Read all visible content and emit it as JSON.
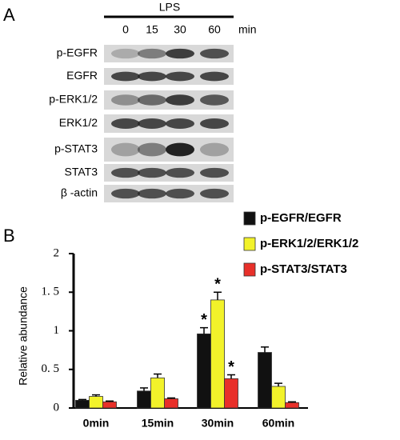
{
  "panel_a": {
    "label": "A",
    "treatment": "LPS",
    "timepoints": [
      "0",
      "15",
      "30",
      "60"
    ],
    "unit": "min",
    "blots": [
      "p-EGFR",
      "EGFR",
      "p-ERK1/2",
      "ERK1/2",
      "p-STAT3",
      "STAT3",
      "β -actin"
    ]
  },
  "chart_data": {
    "type": "bar",
    "panel_label": "B",
    "y_label": "Relative abundance",
    "categories": [
      "0min",
      "15min",
      "30min",
      "60min"
    ],
    "series": [
      {
        "name": "p-EGFR/EGFR",
        "color": "#111111",
        "values": [
          0.1,
          0.22,
          0.96,
          0.72
        ],
        "errors": [
          0.01,
          0.04,
          0.08,
          0.07
        ],
        "significance": [
          null,
          null,
          "*",
          null
        ]
      },
      {
        "name": "p-ERK1/2/ERK1/2",
        "color": "#f2f22a",
        "values": [
          0.15,
          0.39,
          1.4,
          0.28
        ],
        "errors": [
          0.02,
          0.05,
          0.1,
          0.04
        ],
        "significance": [
          null,
          null,
          "*",
          null
        ]
      },
      {
        "name": "p-STAT3/STAT3",
        "color": "#e8302a",
        "values": [
          0.08,
          0.12,
          0.38,
          0.07
        ],
        "errors": [
          0.01,
          0.01,
          0.05,
          0.01
        ],
        "significance": [
          null,
          null,
          "*",
          null
        ]
      }
    ],
    "ylim": [
      0,
      2
    ],
    "yticks": [
      0,
      {
        "value": 0.5,
        "label": "0. 5"
      },
      1,
      {
        "value": 1.5,
        "label": "1. 5"
      },
      2
    ]
  }
}
